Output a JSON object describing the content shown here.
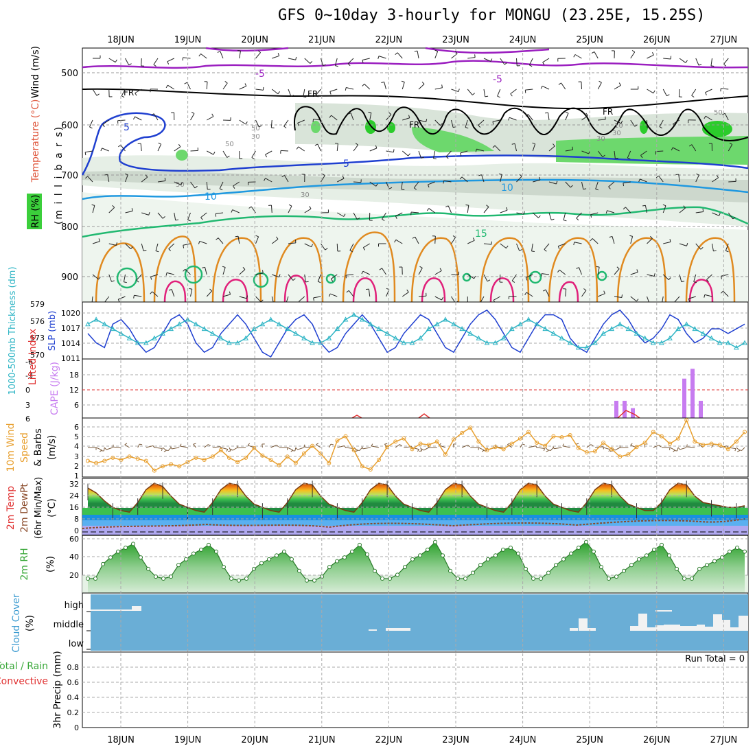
{
  "title": "GFS 0~10day 3-hourly for MONGU (23.25E, 15.25S)",
  "date_labels": [
    "18JUN",
    "19JUN",
    "20JUN",
    "21JUN",
    "22JUN",
    "23JUN",
    "24JUN",
    "25JUN",
    "26JUN",
    "27JUN"
  ],
  "panels": {
    "upper_air": {
      "ylabel_unit": "(m i l l i b a r s)",
      "ylabel_wind": "Wind (m/s)",
      "ylabel_temp": "Temperature (°C)",
      "ylabel_rh": "RH (%)",
      "y_ticks": [
        "500",
        "600",
        "700",
        "800",
        "900"
      ],
      "temp_contour_labels": [
        "-5",
        "-5",
        "FR",
        "FR",
        "FR",
        "FR",
        "5",
        "5",
        "10",
        "10",
        "15"
      ],
      "rh_contour_labels": [
        "50",
        "50",
        "30",
        "50",
        "30",
        "30",
        "10",
        "30",
        "50"
      ]
    },
    "thickness_slp": {
      "ylabel_left": "1000-500mb Thickness (dm)",
      "ylabel_right": "SLP (mb)",
      "thickness_ticks": [
        "579",
        "576",
        "573",
        "570"
      ],
      "slp_ticks": [
        "1020",
        "1017",
        "1014",
        "1011"
      ]
    },
    "instability": {
      "ylabel_li": "Lifted Index",
      "ylabel_cape": "CAPE (J/kg)",
      "li_ticks": [
        "-6",
        "-3",
        "0",
        "3",
        "6"
      ],
      "cape_ticks": [
        "18",
        "12",
        "6"
      ]
    },
    "wind10m": {
      "ylabel_1": "10m Wind",
      "ylabel_2": "Speed",
      "ylabel_3": "& Barbs",
      "ylabel_unit": "(m/s)",
      "y_ticks": [
        "6",
        "5",
        "4",
        "3",
        "2",
        "1"
      ]
    },
    "temperature": {
      "ylabel_1": "2m Temp",
      "ylabel_2": "2m DewPt",
      "ylabel_3": "(6hr Min/Max)",
      "ylabel_unit": "(°C)",
      "y_ticks": [
        "32",
        "24",
        "16",
        "8",
        "0"
      ]
    },
    "rh2m": {
      "ylabel": "2m RH",
      "ylabel_unit": "(%)",
      "y_ticks": [
        "60",
        "40",
        "20"
      ]
    },
    "cloud": {
      "ylabel": "Cloud Cover",
      "ylabel_unit": "(%)",
      "levels": [
        "high",
        "middle",
        "low"
      ]
    },
    "precip": {
      "ylabel_1": "Total / Rain",
      "ylabel_2": "Convective",
      "ylabel_3": "3hr Precip (mm)",
      "y_ticks": [
        "0.8",
        "0.6",
        "0.4",
        "0.2",
        "0"
      ],
      "run_total": "Run Total = 0"
    }
  },
  "colors": {
    "slp": "#1f3fd0",
    "thickness": "#2fb5c5",
    "cape": "#c77cf0",
    "lifted_index": "#e03030",
    "wind_speed": "#e8a030",
    "rh": "#3aa83a",
    "cloud_bg": "#6aaed6",
    "temp_freezing": "#000000",
    "temp_minus5": "#9b1fc0"
  },
  "chart_data": [
    {
      "type": "line",
      "title": "1000-500mb Thickness / SLP",
      "series": [
        {
          "name": "SLP (mb)",
          "values": [
            1016,
            1014,
            1013,
            1018,
            1019,
            1017,
            1014,
            1012,
            1013,
            1016,
            1019,
            1020,
            1018,
            1014,
            1012,
            1013,
            1016,
            1018,
            1020,
            1018,
            1015,
            1012,
            1011,
            1014,
            1017,
            1019,
            1020,
            1018,
            1014,
            1012,
            1013,
            1016,
            1018,
            1020,
            1018,
            1015,
            1012,
            1013,
            1016,
            1018,
            1020,
            1019,
            1016,
            1013,
            1012,
            1015,
            1018,
            1020,
            1021,
            1019,
            1016,
            1013,
            1012,
            1015,
            1018,
            1020,
            1020,
            1019,
            1015,
            1013,
            1012,
            1015,
            1018,
            1020,
            1021,
            1019,
            1016,
            1014,
            1015,
            1017,
            1020,
            1019,
            1016,
            1014,
            1015,
            1017,
            1017,
            1016,
            1017,
            1018
          ]
        },
        {
          "name": "Thickness (dm)",
          "values": [
            576,
            577,
            576,
            575,
            574,
            573,
            572,
            572,
            573,
            574,
            575,
            576,
            577,
            576,
            575,
            574,
            573,
            572,
            572,
            573,
            575,
            576,
            577,
            576,
            575,
            574,
            573,
            572,
            572,
            573,
            575,
            577,
            578,
            577,
            576,
            575,
            574,
            573,
            572,
            572,
            573,
            575,
            576,
            577,
            576,
            575,
            574,
            573,
            572,
            572,
            573,
            575,
            576,
            577,
            576,
            575,
            574,
            573,
            572,
            571,
            571,
            572,
            574,
            575,
            576,
            575,
            574,
            573,
            572,
            572,
            573,
            575,
            576,
            575,
            574,
            573,
            572,
            572,
            571,
            572
          ]
        }
      ],
      "ylim_slp": [
        1011,
        1022
      ],
      "ylim_thickness": [
        569,
        580
      ]
    },
    {
      "type": "bar",
      "title": "CAPE (J/kg)",
      "x": [
        "25JUN-09",
        "25JUN-15",
        "25JUN-18",
        "26JUN-12",
        "26JUN-15",
        "26JUN-18"
      ],
      "values": [
        7,
        7,
        4,
        16,
        20,
        7
      ],
      "ylim": [
        0,
        24
      ]
    },
    {
      "type": "line",
      "title": "10m Wind Speed (m/s)",
      "values": [
        2.5,
        2.3,
        2.5,
        2.8,
        2.6,
        2.9,
        2.7,
        2.5,
        1.6,
        2.0,
        2.2,
        2.0,
        2.4,
        2.8,
        2.6,
        2.9,
        3.5,
        2.8,
        2.4,
        2.8,
        3.7,
        3.0,
        2.6,
        2.1,
        2.9,
        2.3,
        3.2,
        3.9,
        3.2,
        2.3,
        4.4,
        4.8,
        3.5,
        2.0,
        1.7,
        2.6,
        3.8,
        4.3,
        4.6,
        3.6,
        4.1,
        4.0,
        4.3,
        3.1,
        4.5,
        5.1,
        5.6,
        4.3,
        3.5,
        3.8,
        3.6,
        4.1,
        4.6,
        5.2,
        4.2,
        3.9,
        4.8,
        4.7,
        4.9,
        3.7,
        3.3,
        3.4,
        4.2,
        3.6,
        2.9,
        3.1,
        3.8,
        4.2,
        5.2,
        4.8,
        4.1,
        4.6,
        6.3,
        4.3,
        4.0,
        4.1,
        4.0,
        3.6,
        4.3,
        5.2
      ],
      "ylim": [
        1,
        6.5
      ]
    },
    {
      "type": "area",
      "title": "2m Temp (°C)",
      "values": [
        27,
        24,
        19,
        15,
        13,
        12,
        18,
        26,
        30,
        28,
        22,
        17,
        15,
        13,
        12,
        18,
        26,
        30,
        29,
        22,
        17,
        15,
        13,
        12,
        18,
        26,
        30,
        29,
        22,
        17,
        15,
        13,
        12,
        18,
        26,
        30,
        29,
        22,
        17,
        15,
        13,
        12,
        18,
        26,
        30,
        29,
        22,
        17,
        15,
        13,
        12,
        18,
        26,
        30,
        29,
        22,
        17,
        15,
        13,
        12,
        18,
        26,
        30,
        29,
        22,
        17,
        15,
        13,
        13,
        18,
        26,
        30,
        29,
        22,
        18,
        17,
        16,
        15,
        15,
        16
      ],
      "ylim": [
        -2,
        33
      ]
    },
    {
      "type": "area",
      "title": "2m RH (%)",
      "values": [
        20,
        20,
        35,
        42,
        48,
        52,
        56,
        42,
        30,
        22,
        20,
        22,
        34,
        40,
        46,
        50,
        55,
        48,
        32,
        20,
        18,
        20,
        30,
        36,
        40,
        44,
        48,
        40,
        28,
        18,
        18,
        22,
        32,
        38,
        42,
        48,
        55,
        45,
        28,
        20,
        20,
        24,
        32,
        40,
        44,
        50,
        58,
        44,
        28,
        20,
        20,
        26,
        34,
        40,
        44,
        50,
        52,
        46,
        30,
        20,
        20,
        26,
        34,
        40,
        46,
        52,
        58,
        48,
        32,
        20,
        22,
        28,
        34,
        40,
        44,
        50,
        55,
        44,
        30,
        20,
        20,
        30,
        34,
        38,
        42,
        48,
        52,
        48
      ],
      "ylim": [
        5,
        62
      ]
    },
    {
      "type": "bar",
      "title": "3hr Precip (mm)",
      "values": [],
      "ylim": [
        0,
        1
      ]
    }
  ]
}
